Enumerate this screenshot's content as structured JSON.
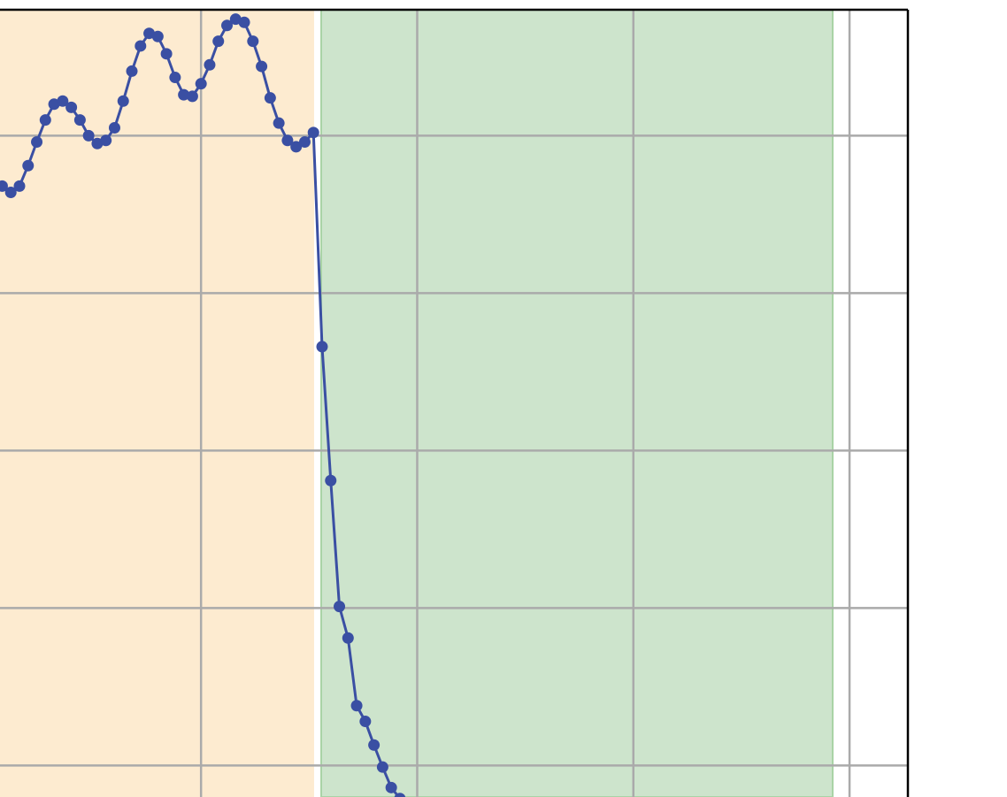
{
  "chart_data": {
    "type": "line",
    "x": [
      0.08,
      0.12,
      0.16,
      0.2,
      0.24,
      0.28,
      0.32,
      0.36,
      0.4,
      0.44,
      0.48,
      0.52,
      0.56,
      0.6,
      0.64,
      0.68,
      0.72,
      0.76,
      0.8,
      0.84,
      0.88,
      0.92,
      0.96,
      1.0,
      1.04,
      1.08,
      1.12,
      1.16,
      1.2,
      1.24,
      1.28,
      1.32,
      1.36,
      1.4,
      1.44,
      1.48,
      1.52,
      1.56,
      1.6,
      1.64,
      1.68,
      1.72,
      1.76,
      1.8,
      1.84,
      1.88,
      1.92
    ],
    "series": [
      {
        "color": "#3a4fa3",
        "values": [
          4.68,
          4.64,
          4.68,
          4.81,
          4.96,
          5.1,
          5.2,
          5.22,
          5.18,
          5.1,
          5.0,
          4.95,
          4.97,
          5.05,
          5.22,
          5.41,
          5.57,
          5.65,
          5.63,
          5.52,
          5.37,
          5.26,
          5.25,
          5.33,
          5.45,
          5.6,
          5.7,
          5.74,
          5.72,
          5.6,
          5.44,
          5.24,
          5.08,
          4.97,
          4.93,
          4.96,
          5.02,
          3.66,
          2.81,
          2.01,
          1.81,
          1.38,
          1.28,
          1.13,
          0.99,
          0.86,
          0.79
        ]
      }
    ],
    "spans": [
      {
        "xmin": 0.07,
        "xmax": 1.523,
        "color": "#fdebd0"
      },
      {
        "xmin": 1.556,
        "xmax": 3.922,
        "color": "#cde4cc"
      }
    ],
    "xlim": [
      0.07,
      4.27
    ],
    "ylim": [
      0.8,
      5.8
    ],
    "xticks": [
      1,
      2,
      3,
      4
    ],
    "yticks": [
      1,
      2,
      3,
      4,
      5
    ],
    "grid": true
  }
}
